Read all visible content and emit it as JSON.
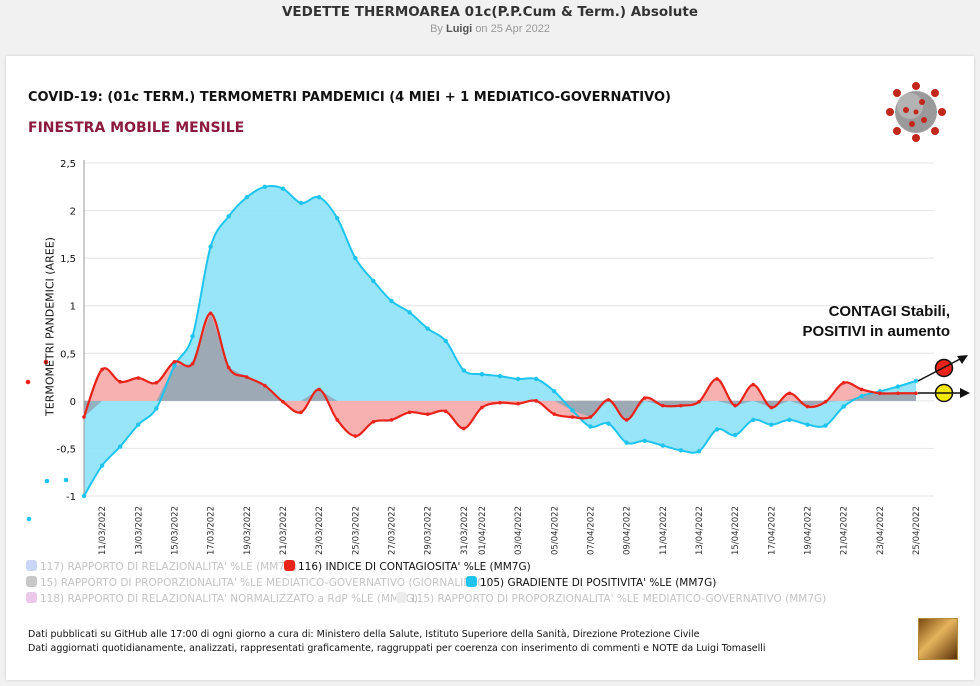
{
  "header": {
    "title": "VEDETTE THERMOAREA 01c(P.P.Cum & Term.) Absolute",
    "by": "By",
    "author": "Luigi",
    "date_text": "on 25 Apr 2022"
  },
  "colors": {
    "blue": "#1ec4ee",
    "blue_fill": "#8de2f9",
    "red": "#e8231a",
    "red_fill": "#f7a3a3",
    "grey_fill": "#8fa8b6",
    "subtitle": "#8b1a3e"
  },
  "annotation": {
    "line1": "CONTAGI Stabili,",
    "line2": "POSITIVI in aumento"
  },
  "legend": [
    {
      "label": "117) RAPPORTO DI RELAZIONALITA' %LE (MM7G)",
      "color": "#c9d6f5",
      "active": false
    },
    {
      "label": "116) INDICE DI CONTAGIOSITA' %LE (MM7G)",
      "color": "#e8231a",
      "active": true
    },
    {
      "label": "15) RAPPORTO DI PROPORZIONALITA' %LE MEDIATICO-GOVERNATIVO (GIORNALIERO)",
      "color": "#c8c8c8",
      "active": false
    },
    {
      "label": "105) GRADIENTE DI POSITIVITA' %LE (MM7G)",
      "color": "#1ec4ee",
      "active": true
    },
    {
      "label": "118) RAPPORTO DI RELAZIONALITA' NORMALIZZATO a RdP %LE (MM7G)",
      "color": "#ecc8ec",
      "active": false
    },
    {
      "label": "115) RAPPORTO DI PROPORZIONALITA' %LE MEDIATICO-GOVERNATIVO (MM7G)",
      "color": "#ececec",
      "active": false
    }
  ],
  "footer": {
    "line1": "Dati pubblicati su GitHub alle 17:00 di ogni giorno a cura di: Ministero della Salute, Istituto Superiore della Sanità, Direzione Protezione Civile",
    "line2": "Dati aggiornati quotidianamente, analizzati, rappresentati graficamente, raggruppati per coerenza con inserimento di commenti e NOTE da Luigi Tomaselli"
  },
  "chart_data": {
    "type": "area",
    "title": "COVID-19: (01c TERM.) TERMOMETRI PAMDEMICI (4 MIEI + 1 MEDIATICO-GOVERNATIVO)",
    "subtitle": "FINESTRA MOBILE MENSILE",
    "ylabel": "TERMOMETRI PANDEMICI (AREE)",
    "xlabel": "",
    "ylim": [
      -1,
      2.5
    ],
    "yticks": [
      "-1",
      "-0,5",
      "0",
      "0,5",
      "1",
      "1,5",
      "2",
      "2,5"
    ],
    "ytick_values": [
      -1,
      -0.5,
      0,
      0.5,
      1,
      1.5,
      2,
      2.5
    ],
    "grid": true,
    "x": [
      "10/03/2022",
      "11/03/2022",
      "12/03/2022",
      "13/03/2022",
      "14/03/2022",
      "15/03/2022",
      "16/03/2022",
      "17/03/2022",
      "18/03/2022",
      "19/03/2022",
      "20/03/2022",
      "21/03/2022",
      "22/03/2022",
      "23/03/2022",
      "24/03/2022",
      "25/03/2022",
      "26/03/2022",
      "27/03/2022",
      "28/03/2022",
      "29/03/2022",
      "30/03/2022",
      "31/03/2022",
      "01/04/2022",
      "02/04/2022",
      "03/04/2022",
      "04/04/2022",
      "05/04/2022",
      "06/04/2022",
      "07/04/2022",
      "08/04/2022",
      "09/04/2022",
      "10/04/2022",
      "11/04/2022",
      "12/04/2022",
      "13/04/2022",
      "14/04/2022",
      "15/04/2022",
      "16/04/2022",
      "17/04/2022",
      "18/04/2022",
      "19/04/2022",
      "20/04/2022",
      "21/04/2022",
      "22/04/2022",
      "23/04/2022",
      "24/04/2022",
      "25/04/2022"
    ],
    "xtick_labels": [
      "11/03/2022",
      "13/03/2022",
      "15/03/2022",
      "17/03/2022",
      "19/03/2022",
      "21/03/2022",
      "23/03/2022",
      "25/03/2022",
      "27/03/2022",
      "29/03/2022",
      "31/03/2022",
      "01/04/2022",
      "03/04/2022",
      "05/04/2022",
      "07/04/2022",
      "09/04/2022",
      "11/04/2022",
      "13/04/2022",
      "15/04/2022",
      "17/04/2022",
      "19/04/2022",
      "21/04/2022",
      "23/04/2022",
      "25/04/2022"
    ],
    "series": [
      {
        "name": "105) GRADIENTE DI POSITIVITA' %LE (MM7G)",
        "color": "#1ec4ee",
        "values": [
          -1.0,
          -0.68,
          -0.48,
          -0.25,
          -0.08,
          0.37,
          0.68,
          1.62,
          1.94,
          2.14,
          2.25,
          2.23,
          2.08,
          2.14,
          1.92,
          1.5,
          1.26,
          1.05,
          0.93,
          0.76,
          0.63,
          0.32,
          0.28,
          0.26,
          0.23,
          0.23,
          0.1,
          -0.1,
          -0.27,
          -0.24,
          -0.44,
          -0.42,
          -0.47,
          -0.52,
          -0.53,
          -0.3,
          -0.36,
          -0.2,
          -0.25,
          -0.2,
          -0.25,
          -0.26,
          -0.06,
          0.05,
          0.1,
          0.15,
          0.21
        ]
      },
      {
        "name": "116) INDICE DI CONTAGIOSITA' %LE (MM7G)",
        "color": "#e8231a",
        "values": [
          -0.17,
          0.33,
          0.2,
          0.24,
          0.19,
          0.41,
          0.39,
          0.92,
          0.35,
          0.25,
          0.16,
          -0.01,
          -0.12,
          0.12,
          -0.2,
          -0.37,
          -0.22,
          -0.2,
          -0.12,
          -0.14,
          -0.11,
          -0.29,
          -0.07,
          -0.02,
          -0.03,
          0.0,
          -0.14,
          -0.17,
          -0.17,
          0.01,
          -0.2,
          0.03,
          -0.05,
          -0.05,
          -0.01,
          0.23,
          -0.05,
          0.17,
          -0.07,
          0.08,
          -0.06,
          -0.01,
          0.19,
          0.12,
          0.08,
          0.08,
          0.08
        ]
      }
    ],
    "endpoint_markers": [
      {
        "color": "#e8231a",
        "label": "116"
      },
      {
        "color": "#f5e800",
        "label": "105"
      }
    ]
  }
}
